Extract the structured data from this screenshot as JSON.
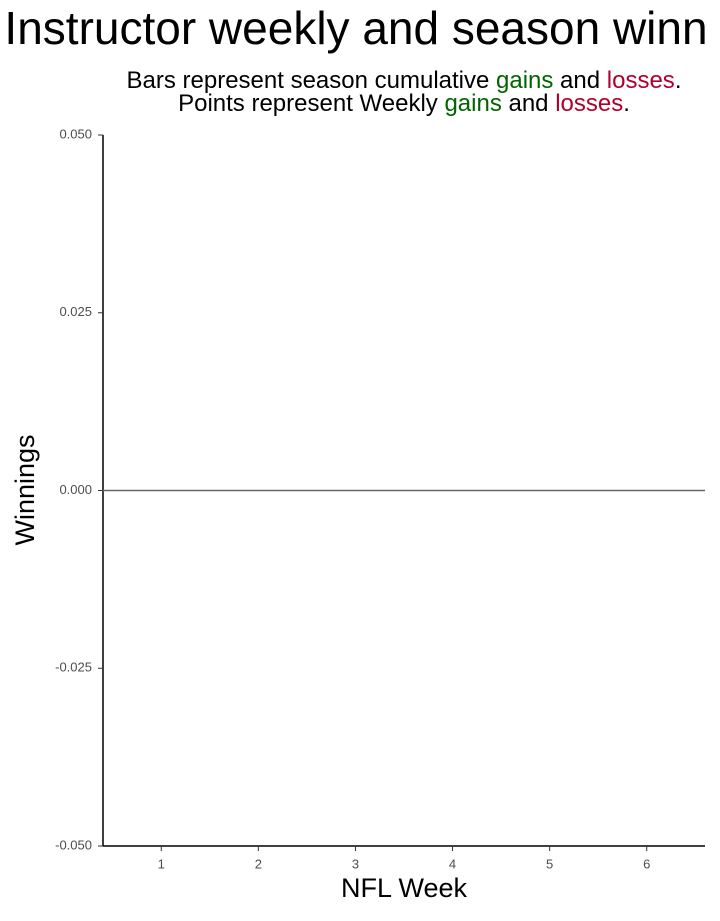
{
  "chart_data": {
    "type": "bar",
    "title": "Instructor weekly and season winn",
    "subtitle": [
      [
        {
          "text": "Bars represent season cumulative "
        },
        {
          "text": "gains",
          "color": "#006400"
        },
        {
          "text": " and "
        },
        {
          "text": "losses",
          "color": "#b0002e"
        },
        {
          "text": "."
        }
      ],
      [
        {
          "text": "Points represent Weekly "
        },
        {
          "text": "gains",
          "color": "#006400"
        },
        {
          "text": " and "
        },
        {
          "text": "losses",
          "color": "#b0002e"
        },
        {
          "text": "."
        }
      ]
    ],
    "x_label": "NFL Week",
    "y_label": "Winnings",
    "series": [],
    "xlim": [
      0.4,
      6.6
    ],
    "xticks": [
      1,
      2,
      3,
      4,
      5,
      6
    ],
    "ylim": [
      -0.05,
      0.05
    ],
    "yticks": [
      {
        "value": -0.05,
        "label": "-0.050"
      },
      {
        "value": -0.025,
        "label": "-0.025"
      },
      {
        "value": 0,
        "label": "0.000"
      },
      {
        "value": 0.025,
        "label": "0.025"
      },
      {
        "value": 0.05,
        "label": "0.050"
      }
    ],
    "reference_line": 0
  }
}
